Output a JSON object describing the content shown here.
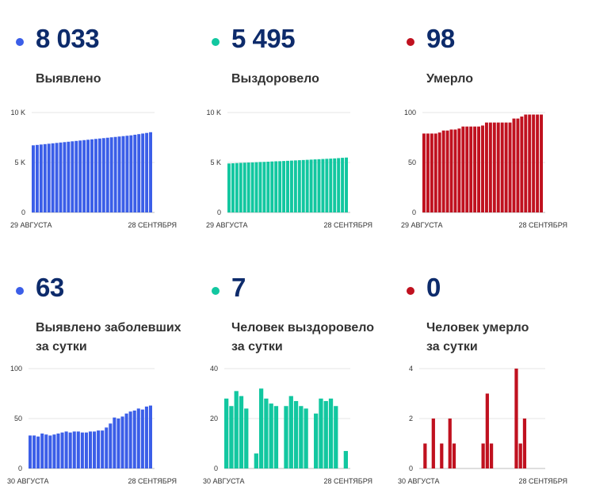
{
  "colors": {
    "blue": "#3b5ee8",
    "green": "#12c7a0",
    "red": "#c0111f",
    "title": "#0d2b6b"
  },
  "panels": [
    {
      "value": "8 033",
      "label_lines": [
        "Выявлено"
      ],
      "color": "#3b5ee8",
      "chart_data": {
        "type": "bar",
        "ylim": [
          0,
          10000
        ],
        "yticks": [
          "0",
          "5 K",
          "10 K"
        ],
        "ytick_values": [
          0,
          5000,
          10000
        ],
        "x_start_label": "29 АВГУСТА",
        "x_end_label": "28 СЕНТЯБРЯ",
        "values": [
          6720,
          6760,
          6800,
          6840,
          6880,
          6920,
          6960,
          7000,
          7040,
          7080,
          7120,
          7160,
          7200,
          7240,
          7280,
          7320,
          7360,
          7400,
          7440,
          7480,
          7520,
          7560,
          7600,
          7640,
          7680,
          7720,
          7780,
          7840,
          7900,
          7960,
          8033
        ]
      }
    },
    {
      "value": "5 495",
      "label_lines": [
        "Выздоровело"
      ],
      "color": "#12c7a0",
      "chart_data": {
        "type": "bar",
        "ylim": [
          0,
          10000
        ],
        "yticks": [
          "0",
          "5 K",
          "10 K"
        ],
        "ytick_values": [
          0,
          5000,
          10000
        ],
        "x_start_label": "29 АВГУСТА",
        "x_end_label": "28 СЕНТЯБРЯ",
        "values": [
          4900,
          4920,
          4940,
          4960,
          4980,
          5000,
          5010,
          5030,
          5050,
          5060,
          5080,
          5100,
          5120,
          5130,
          5150,
          5170,
          5190,
          5210,
          5230,
          5250,
          5270,
          5290,
          5310,
          5330,
          5350,
          5370,
          5390,
          5410,
          5440,
          5470,
          5495
        ]
      }
    },
    {
      "value": "98",
      "label_lines": [
        "Умерло"
      ],
      "color": "#c0111f",
      "chart_data": {
        "type": "bar",
        "ylim": [
          0,
          100
        ],
        "yticks": [
          "0",
          "50",
          "100"
        ],
        "ytick_values": [
          0,
          50,
          100
        ],
        "x_start_label": "29 АВГУСТА",
        "x_end_label": "28 СЕНТЯБРЯ",
        "values": [
          79,
          79,
          79,
          79,
          80,
          82,
          82,
          83,
          83,
          84,
          86,
          86,
          86,
          86,
          86,
          87,
          90,
          90,
          90,
          90,
          90,
          90,
          90,
          94,
          94,
          96,
          98,
          98,
          98,
          98,
          98
        ]
      }
    },
    {
      "value": "63",
      "label_lines": [
        "Выявлено заболевших",
        "за сутки"
      ],
      "color": "#3b5ee8",
      "chart_data": {
        "type": "bar",
        "ylim": [
          0,
          100
        ],
        "yticks": [
          "0",
          "50",
          "100"
        ],
        "ytick_values": [
          0,
          50,
          100
        ],
        "x_start_label": "30 АВГУСТА",
        "x_end_label": "28 СЕНТЯБРЯ",
        "values": [
          33,
          33,
          32,
          35,
          34,
          33,
          34,
          35,
          36,
          37,
          36,
          37,
          37,
          36,
          36,
          37,
          37,
          38,
          38,
          41,
          45,
          51,
          50,
          52,
          55,
          57,
          58,
          60,
          59,
          62,
          63
        ]
      }
    },
    {
      "value": "7",
      "label_lines": [
        "Человек выздоровело",
        "за сутки"
      ],
      "color": "#12c7a0",
      "chart_data": {
        "type": "bar",
        "ylim": [
          0,
          40
        ],
        "yticks": [
          "0",
          "20",
          "40"
        ],
        "ytick_values": [
          0,
          20,
          40
        ],
        "x_start_label": "30 АВГУСТА",
        "x_end_label": "28 СЕНТЯБРЯ",
        "values": [
          28,
          25,
          31,
          29,
          24,
          0,
          6,
          32,
          28,
          26,
          25,
          0,
          25,
          29,
          27,
          25,
          24,
          0,
          22,
          28,
          27,
          28,
          25,
          0,
          7
        ]
      }
    },
    {
      "value": "0",
      "label_lines": [
        "Человек умерло",
        "за сутки"
      ],
      "color": "#c0111f",
      "chart_data": {
        "type": "bar",
        "ylim": [
          0,
          4
        ],
        "yticks": [
          "0",
          "2",
          "4"
        ],
        "ytick_values": [
          0,
          2,
          4
        ],
        "x_start_label": "30 АВГУСТА",
        "x_end_label": "28 СЕНТЯБРЯ",
        "values": [
          0,
          1,
          0,
          2,
          0,
          1,
          0,
          2,
          1,
          0,
          0,
          0,
          0,
          0,
          0,
          1,
          3,
          1,
          0,
          0,
          0,
          0,
          0,
          4,
          1,
          2,
          0,
          0,
          0,
          0
        ]
      }
    }
  ]
}
